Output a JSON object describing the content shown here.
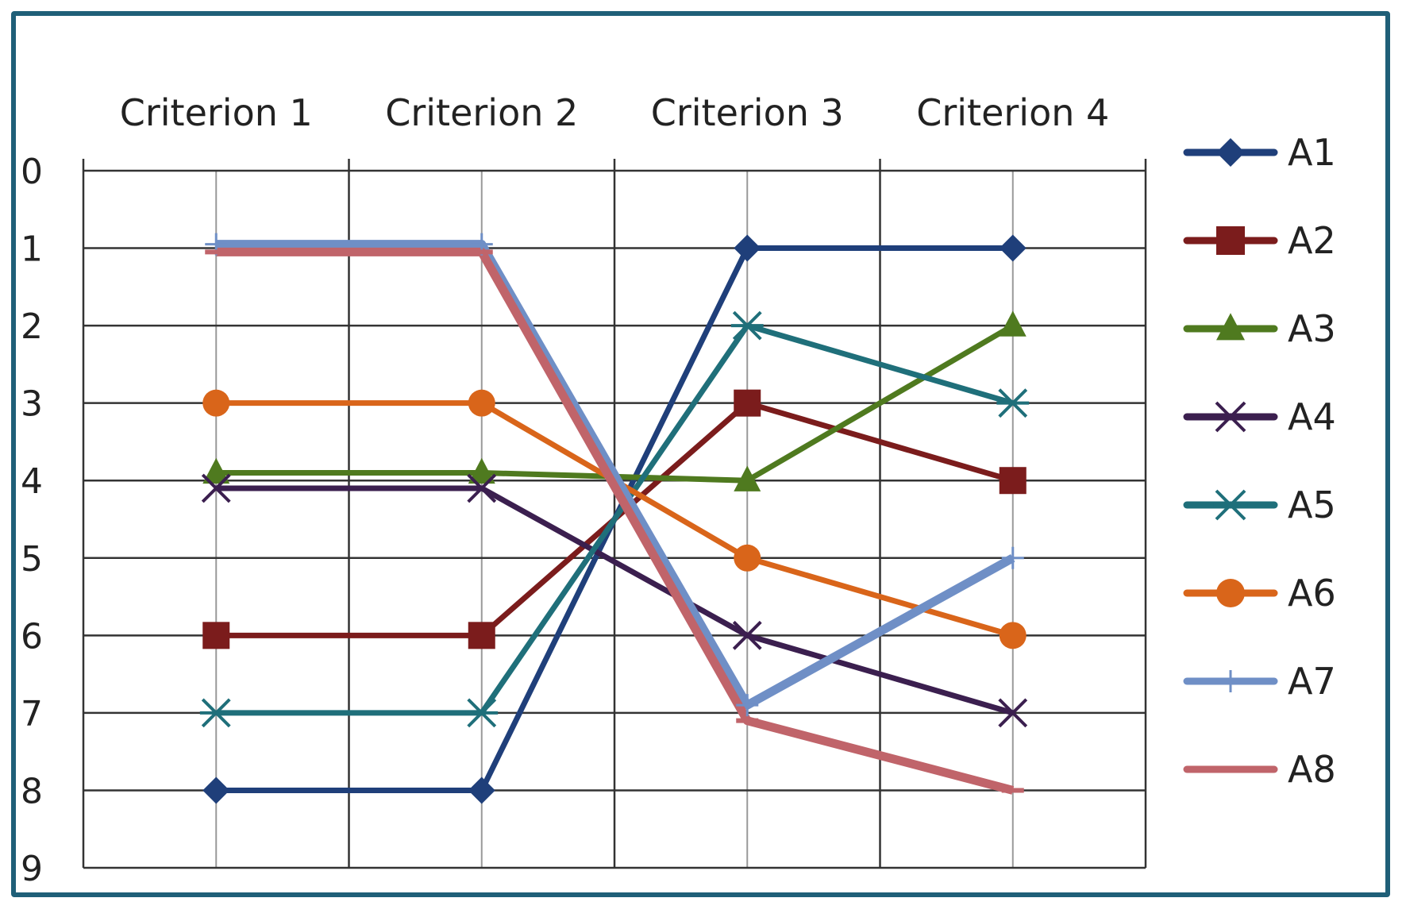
{
  "chart_data": {
    "type": "line",
    "categories": [
      "Criterion 1",
      "Criterion 2",
      "Criterion 3",
      "Criterion 4"
    ],
    "y_ticks": [
      "0",
      "1",
      "2",
      "3",
      "4",
      "5",
      "6",
      "7",
      "8",
      "9"
    ],
    "ylim": [
      0,
      9
    ],
    "y_inverted": true,
    "grid": true,
    "legend_position": "right",
    "series": [
      {
        "name": "A1",
        "values": [
          8,
          8,
          1,
          1
        ],
        "color": "#1f3f7a",
        "marker": "diamond"
      },
      {
        "name": "A2",
        "values": [
          6,
          6,
          3,
          4
        ],
        "color": "#7b1c1c",
        "marker": "square"
      },
      {
        "name": "A3",
        "values": [
          3.9,
          3.9,
          4,
          2
        ],
        "color": "#4f7a1f",
        "marker": "triangle"
      },
      {
        "name": "A4",
        "values": [
          4.1,
          4.1,
          6,
          7
        ],
        "color": "#3b1f4f",
        "marker": "x"
      },
      {
        "name": "A5",
        "values": [
          7,
          7,
          2,
          3
        ],
        "color": "#1f6f7a",
        "marker": "star"
      },
      {
        "name": "A6",
        "values": [
          3,
          3,
          5,
          6
        ],
        "color": "#d9651a",
        "marker": "circle"
      },
      {
        "name": "A7",
        "values": [
          0.95,
          0.95,
          6.9,
          5
        ],
        "color": "#6f8fc6",
        "marker": "plus"
      },
      {
        "name": "A8",
        "values": [
          1.05,
          1.05,
          7.1,
          8
        ],
        "color": "#c0646a",
        "marker": "dash"
      }
    ]
  }
}
